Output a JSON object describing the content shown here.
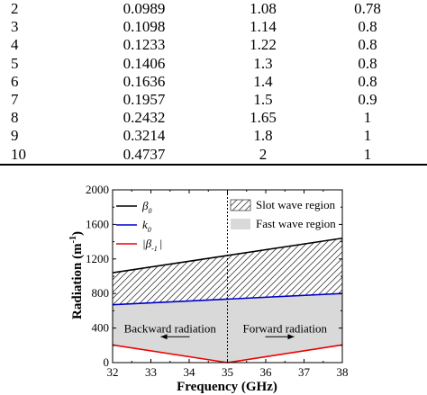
{
  "table": {
    "rows": [
      [
        "2",
        "0.0989",
        "1.08",
        "0.78"
      ],
      [
        "3",
        "0.1098",
        "1.14",
        "0.8"
      ],
      [
        "4",
        "0.1233",
        "1.22",
        "0.8"
      ],
      [
        "5",
        "0.1406",
        "1.3",
        "0.8"
      ],
      [
        "6",
        "0.1636",
        "1.4",
        "0.8"
      ],
      [
        "7",
        "0.1957",
        "1.5",
        "0.9"
      ],
      [
        "8",
        "0.2432",
        "1.65",
        "1"
      ],
      [
        "9",
        "0.3214",
        "1.8",
        "1"
      ],
      [
        "10",
        "0.4737",
        "2",
        "1"
      ]
    ]
  },
  "chart_data": {
    "type": "line",
    "xlabel": "Frequency (GHz)",
    "ylabel_main": "Radiation (m",
    "ylabel_sup": "-1",
    "ylabel_close": ")",
    "xlim": [
      32,
      38
    ],
    "ylim": [
      0,
      2000
    ],
    "xticks": [
      "32",
      "33",
      "34",
      "35",
      "36",
      "37",
      "38"
    ],
    "yticks": [
      "0",
      "400",
      "800",
      "1200",
      "1600",
      "2000"
    ],
    "grid": false,
    "legend_position": "top-left",
    "x": [
      32,
      35,
      38
    ],
    "series": [
      {
        "legend_main": "β",
        "legend_sub": "0",
        "color": "#000000",
        "values": [
          1040,
          1240,
          1440
        ]
      },
      {
        "legend_main": "k",
        "legend_sub": "0",
        "color": "#0000cc",
        "values": [
          670,
          735,
          800
        ]
      },
      {
        "legend_main": "|β",
        "legend_sub": "-1",
        "legend_close": "|",
        "color": "#ee0000",
        "values": [
          205,
          0,
          205
        ]
      }
    ],
    "regions": [
      {
        "label": "Slot wave region",
        "fill": "hatch"
      },
      {
        "label": "Fast wave region",
        "fill": "#d9d9d9"
      }
    ],
    "divider_x": 35,
    "annotations": {
      "left": "Backward radiation",
      "right": "Forward radiation",
      "arrow_y": 300
    }
  }
}
